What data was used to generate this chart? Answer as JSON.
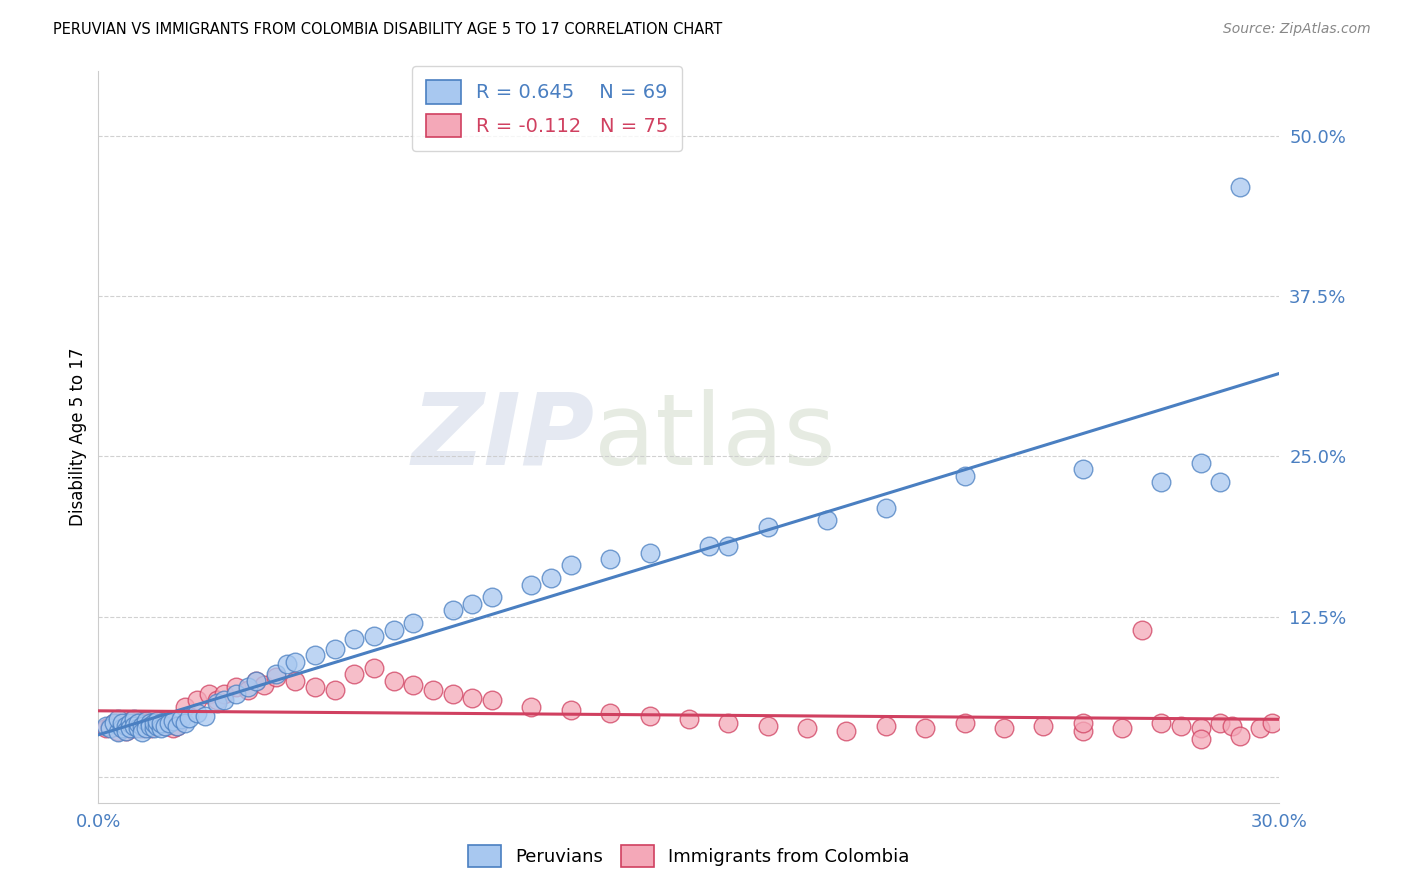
{
  "title": "PERUVIAN VS IMMIGRANTS FROM COLOMBIA DISABILITY AGE 5 TO 17 CORRELATION CHART",
  "source": "Source: ZipAtlas.com",
  "ylabel": "Disability Age 5 to 17",
  "xlim": [
    0.0,
    0.3
  ],
  "ylim": [
    -0.02,
    0.55
  ],
  "yticks": [
    0.0,
    0.125,
    0.25,
    0.375,
    0.5
  ],
  "ytick_labels": [
    "",
    "12.5%",
    "25.0%",
    "37.5%",
    "50.0%"
  ],
  "blue_R": 0.645,
  "blue_N": 69,
  "pink_R": -0.112,
  "pink_N": 75,
  "blue_color": "#a8c8f0",
  "pink_color": "#f4a8b8",
  "blue_line_color": "#4a7fc1",
  "pink_line_color": "#d04060",
  "watermark_zip": "ZIP",
  "watermark_atlas": "atlas",
  "background_color": "#ffffff",
  "grid_color": "#cccccc",
  "blue_scatter_x": [
    0.002,
    0.003,
    0.004,
    0.005,
    0.005,
    0.006,
    0.006,
    0.007,
    0.007,
    0.008,
    0.008,
    0.009,
    0.009,
    0.01,
    0.01,
    0.011,
    0.011,
    0.012,
    0.012,
    0.013,
    0.013,
    0.014,
    0.014,
    0.015,
    0.015,
    0.016,
    0.016,
    0.017,
    0.018,
    0.019,
    0.02,
    0.021,
    0.022,
    0.023,
    0.025,
    0.027,
    0.03,
    0.032,
    0.035,
    0.038,
    0.04,
    0.045,
    0.048,
    0.05,
    0.055,
    0.06,
    0.065,
    0.07,
    0.075,
    0.08,
    0.09,
    0.095,
    0.1,
    0.11,
    0.115,
    0.12,
    0.13,
    0.14,
    0.155,
    0.16,
    0.17,
    0.185,
    0.2,
    0.22,
    0.25,
    0.27,
    0.28,
    0.285,
    0.29
  ],
  "blue_scatter_y": [
    0.04,
    0.038,
    0.042,
    0.035,
    0.045,
    0.038,
    0.042,
    0.04,
    0.036,
    0.042,
    0.038,
    0.045,
    0.04,
    0.038,
    0.042,
    0.04,
    0.035,
    0.044,
    0.038,
    0.042,
    0.04,
    0.038,
    0.042,
    0.04,
    0.044,
    0.038,
    0.042,
    0.04,
    0.042,
    0.044,
    0.04,
    0.045,
    0.042,
    0.046,
    0.05,
    0.048,
    0.058,
    0.06,
    0.065,
    0.07,
    0.075,
    0.08,
    0.088,
    0.09,
    0.095,
    0.1,
    0.108,
    0.11,
    0.115,
    0.12,
    0.13,
    0.135,
    0.14,
    0.15,
    0.155,
    0.165,
    0.17,
    0.175,
    0.18,
    0.18,
    0.195,
    0.2,
    0.21,
    0.235,
    0.24,
    0.23,
    0.245,
    0.23,
    0.46
  ],
  "pink_scatter_x": [
    0.002,
    0.003,
    0.004,
    0.005,
    0.005,
    0.006,
    0.006,
    0.007,
    0.007,
    0.008,
    0.008,
    0.009,
    0.009,
    0.01,
    0.01,
    0.011,
    0.011,
    0.012,
    0.012,
    0.013,
    0.014,
    0.015,
    0.016,
    0.017,
    0.018,
    0.019,
    0.02,
    0.022,
    0.025,
    0.028,
    0.03,
    0.032,
    0.035,
    0.038,
    0.04,
    0.042,
    0.045,
    0.05,
    0.055,
    0.06,
    0.065,
    0.07,
    0.075,
    0.08,
    0.085,
    0.09,
    0.095,
    0.1,
    0.11,
    0.12,
    0.13,
    0.14,
    0.15,
    0.16,
    0.17,
    0.18,
    0.19,
    0.2,
    0.21,
    0.22,
    0.23,
    0.24,
    0.25,
    0.26,
    0.265,
    0.27,
    0.275,
    0.28,
    0.285,
    0.288,
    0.29,
    0.295,
    0.298,
    0.25,
    0.28
  ],
  "pink_scatter_y": [
    0.038,
    0.04,
    0.042,
    0.036,
    0.042,
    0.038,
    0.04,
    0.036,
    0.042,
    0.038,
    0.044,
    0.04,
    0.038,
    0.042,
    0.04,
    0.038,
    0.044,
    0.042,
    0.04,
    0.038,
    0.042,
    0.04,
    0.044,
    0.04,
    0.042,
    0.038,
    0.04,
    0.055,
    0.06,
    0.065,
    0.06,
    0.065,
    0.07,
    0.068,
    0.075,
    0.072,
    0.078,
    0.075,
    0.07,
    0.068,
    0.08,
    0.085,
    0.075,
    0.072,
    0.068,
    0.065,
    0.062,
    0.06,
    0.055,
    0.052,
    0.05,
    0.048,
    0.045,
    0.042,
    0.04,
    0.038,
    0.036,
    0.04,
    0.038,
    0.042,
    0.038,
    0.04,
    0.036,
    0.038,
    0.115,
    0.042,
    0.04,
    0.038,
    0.042,
    0.04,
    0.032,
    0.038,
    0.042,
    0.042,
    0.03
  ]
}
